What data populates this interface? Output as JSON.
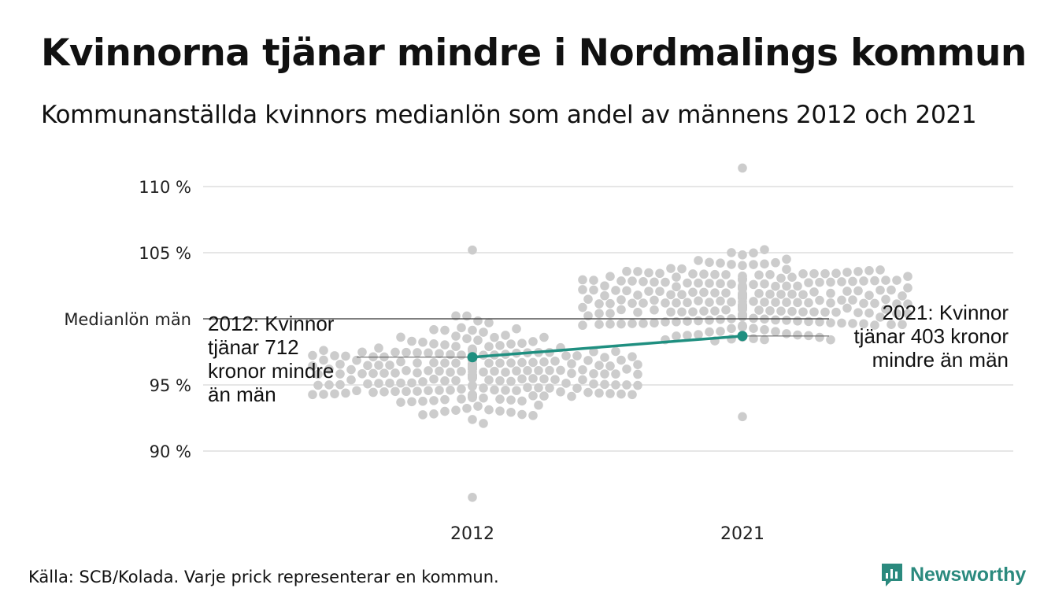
{
  "title": "Kvinnorna tjänar mindre i Nordmalings kommun",
  "subtitle": "Kommunanställda kvinnors medianlön som andel av männens 2012 och 2021",
  "footer": "Källa: SCB/Kolada. Varje prick representerar en kommun.",
  "brand": {
    "name": "Newsworthy",
    "icon": "newsworthy-logo-icon",
    "color": "#2b8a7e"
  },
  "chart_data": {
    "type": "scatter",
    "ylim": [
      86,
      112
    ],
    "yticks": [
      90,
      95,
      100,
      105,
      110
    ],
    "ytick_labels": [
      "90 %",
      "95 %",
      "Medianlön män",
      "105 %",
      "110 %"
    ],
    "grid": true,
    "categories": [
      "2012",
      "2021"
    ],
    "colors": {
      "dots": "#cccccc",
      "highlight": "#1f8f80",
      "grid": "#e6e6e6",
      "reference": "#333333"
    },
    "reference_line": {
      "value": 100,
      "label": "Medianlön män"
    },
    "series": [
      {
        "name": "Nordmaling",
        "x": [
          "2012",
          "2021"
        ],
        "y": [
          97.1,
          98.7
        ]
      }
    ],
    "annotations": [
      {
        "year": "2012",
        "lines": [
          "2012: Kvinnor",
          "tjänar 712",
          "kronor mindre",
          "än män"
        ]
      },
      {
        "year": "2021",
        "lines": [
          "2021: Kvinnor",
          "tjänar 403 kronor",
          "mindre än män"
        ]
      }
    ],
    "distribution": [
      {
        "x": "2012",
        "center": 96,
        "sd": 2.4,
        "n": 290,
        "min": 86.5,
        "max": 105.2
      },
      {
        "x": "2021",
        "center": 101.3,
        "sd": 2.4,
        "n": 290,
        "min": 92.6,
        "max": 111.4
      }
    ]
  }
}
